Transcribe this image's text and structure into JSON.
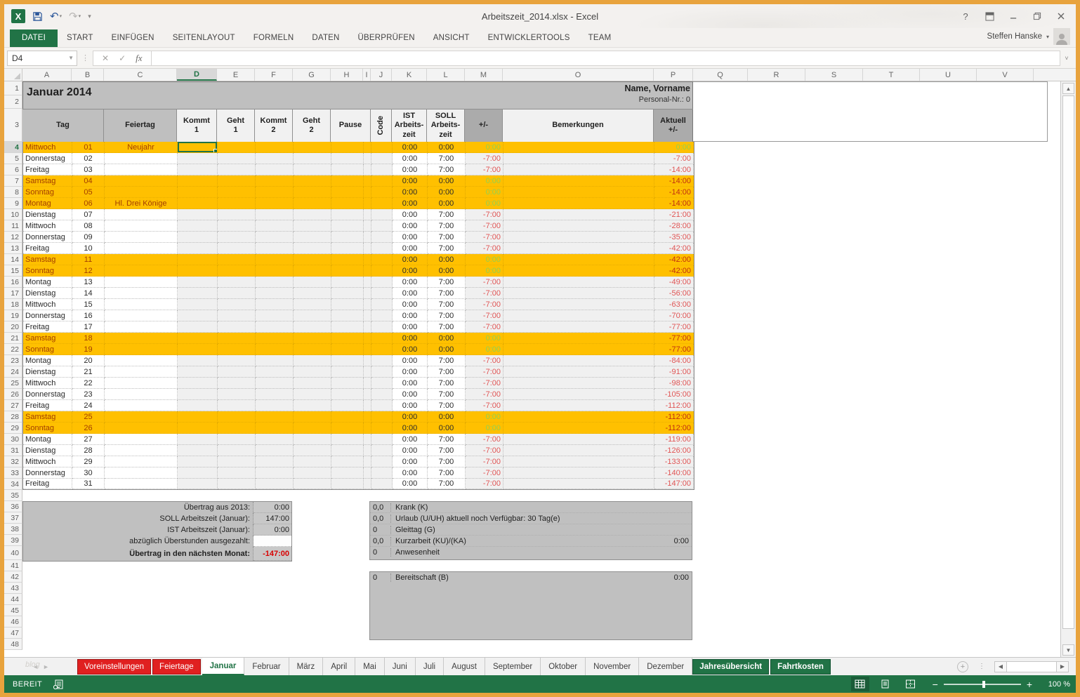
{
  "accent": {
    "green": "#217346",
    "orange_highlight": "#FFC000",
    "negative_red": "#E05555",
    "positive_green": "#92D050",
    "tab_red": "#E02020",
    "band_gray": "#BFBFBF"
  },
  "window": {
    "title": "Arbeitszeit_2014.xlsx - Excel",
    "controls": [
      "help",
      "ribbon-display-options",
      "minimize",
      "restore",
      "close"
    ],
    "help_glyph": "?"
  },
  "qat": {
    "undo_glyph": "↶",
    "redo_glyph": "↷",
    "excel_glyph": "X"
  },
  "ribbon": {
    "tabs": [
      "DATEI",
      "START",
      "EINFÜGEN",
      "SEITENLAYOUT",
      "FORMELN",
      "DATEN",
      "ÜBERPRÜFEN",
      "ANSICHT",
      "ENTWICKLERTOOLS",
      "TEAM"
    ],
    "active_tab": "DATEI",
    "user": "Steffen Hanske",
    "user_caret": "▾"
  },
  "formula_bar": {
    "name_box": "D4",
    "cancel_glyph": "✕",
    "enter_glyph": "✓",
    "fx_glyph": "fx",
    "value": ""
  },
  "grid": {
    "columns": [
      "A",
      "B",
      "C",
      "D",
      "E",
      "F",
      "G",
      "H",
      "I",
      "J",
      "K",
      "L",
      "M",
      "O",
      "P",
      "Q",
      "R",
      "S",
      "T",
      "U",
      "V"
    ],
    "selected_column": "D",
    "selected_row": 4,
    "first_row": 1,
    "last_row": 48
  },
  "sheet_head": {
    "month_title": "Januar 2014",
    "name_label": "Name, Vorname",
    "personal_label": "Personal-Nr.: 0"
  },
  "table_header": {
    "tag": "Tag",
    "feiertag": "Feiertag",
    "kommt1": "Kommt\n1",
    "geht1": "Geht\n1",
    "kommt2": "Kommt\n2",
    "geht2": "Geht\n2",
    "pause": "Pause",
    "code": "Code",
    "ist": "IST\nArbeits-\nzeit",
    "soll": "SOLL\nArbeits-\nzeit",
    "plusminus": "+/-",
    "bemerkungen": "Bemerkungen",
    "aktuell": "Aktuell\n+/-"
  },
  "days": [
    {
      "n": "01",
      "d": "Mittwoch",
      "f": "Neujahr",
      "w": true,
      "ist": "0:00",
      "soll": "0:00",
      "pm": "0:00",
      "pmc": "g",
      "akt": "0:00",
      "aktc": "g",
      "sel": true
    },
    {
      "n": "02",
      "d": "Donnerstag",
      "f": "",
      "w": false,
      "ist": "0:00",
      "soll": "7:00",
      "pm": "-7:00",
      "pmc": "r",
      "akt": "-7:00",
      "aktc": "r"
    },
    {
      "n": "03",
      "d": "Freitag",
      "f": "",
      "w": false,
      "ist": "0:00",
      "soll": "7:00",
      "pm": "-7:00",
      "pmc": "r",
      "akt": "-14:00",
      "aktc": "r"
    },
    {
      "n": "04",
      "d": "Samstag",
      "f": "",
      "w": true,
      "ist": "0:00",
      "soll": "0:00",
      "pm": "0:00",
      "pmc": "g",
      "akt": "-14:00",
      "aktc": "r"
    },
    {
      "n": "05",
      "d": "Sonntag",
      "f": "",
      "w": true,
      "ist": "0:00",
      "soll": "0:00",
      "pm": "0:00",
      "pmc": "g",
      "akt": "-14:00",
      "aktc": "r"
    },
    {
      "n": "06",
      "d": "Montag",
      "f": "Hl. Drei Könige",
      "w": true,
      "ist": "0:00",
      "soll": "0:00",
      "pm": "0:00",
      "pmc": "g",
      "akt": "-14:00",
      "aktc": "r"
    },
    {
      "n": "07",
      "d": "Dienstag",
      "f": "",
      "w": false,
      "ist": "0:00",
      "soll": "7:00",
      "pm": "-7:00",
      "pmc": "r",
      "akt": "-21:00",
      "aktc": "r"
    },
    {
      "n": "08",
      "d": "Mittwoch",
      "f": "",
      "w": false,
      "ist": "0:00",
      "soll": "7:00",
      "pm": "-7:00",
      "pmc": "r",
      "akt": "-28:00",
      "aktc": "r"
    },
    {
      "n": "09",
      "d": "Donnerstag",
      "f": "",
      "w": false,
      "ist": "0:00",
      "soll": "7:00",
      "pm": "-7:00",
      "pmc": "r",
      "akt": "-35:00",
      "aktc": "r"
    },
    {
      "n": "10",
      "d": "Freitag",
      "f": "",
      "w": false,
      "ist": "0:00",
      "soll": "7:00",
      "pm": "-7:00",
      "pmc": "r",
      "akt": "-42:00",
      "aktc": "r"
    },
    {
      "n": "11",
      "d": "Samstag",
      "f": "",
      "w": true,
      "ist": "0:00",
      "soll": "0:00",
      "pm": "0:00",
      "pmc": "g",
      "akt": "-42:00",
      "aktc": "r"
    },
    {
      "n": "12",
      "d": "Sonntag",
      "f": "",
      "w": true,
      "ist": "0:00",
      "soll": "0:00",
      "pm": "0:00",
      "pmc": "g",
      "akt": "-42:00",
      "aktc": "r"
    },
    {
      "n": "13",
      "d": "Montag",
      "f": "",
      "w": false,
      "ist": "0:00",
      "soll": "7:00",
      "pm": "-7:00",
      "pmc": "r",
      "akt": "-49:00",
      "aktc": "r"
    },
    {
      "n": "14",
      "d": "Dienstag",
      "f": "",
      "w": false,
      "ist": "0:00",
      "soll": "7:00",
      "pm": "-7:00",
      "pmc": "r",
      "akt": "-56:00",
      "aktc": "r"
    },
    {
      "n": "15",
      "d": "Mittwoch",
      "f": "",
      "w": false,
      "ist": "0:00",
      "soll": "7:00",
      "pm": "-7:00",
      "pmc": "r",
      "akt": "-63:00",
      "aktc": "r"
    },
    {
      "n": "16",
      "d": "Donnerstag",
      "f": "",
      "w": false,
      "ist": "0:00",
      "soll": "7:00",
      "pm": "-7:00",
      "pmc": "r",
      "akt": "-70:00",
      "aktc": "r"
    },
    {
      "n": "17",
      "d": "Freitag",
      "f": "",
      "w": false,
      "ist": "0:00",
      "soll": "7:00",
      "pm": "-7:00",
      "pmc": "r",
      "akt": "-77:00",
      "aktc": "r"
    },
    {
      "n": "18",
      "d": "Samstag",
      "f": "",
      "w": true,
      "ist": "0:00",
      "soll": "0:00",
      "pm": "0:00",
      "pmc": "g",
      "akt": "-77:00",
      "aktc": "r"
    },
    {
      "n": "19",
      "d": "Sonntag",
      "f": "",
      "w": true,
      "ist": "0:00",
      "soll": "0:00",
      "pm": "0:00",
      "pmc": "g",
      "akt": "-77:00",
      "aktc": "r"
    },
    {
      "n": "20",
      "d": "Montag",
      "f": "",
      "w": false,
      "ist": "0:00",
      "soll": "7:00",
      "pm": "-7:00",
      "pmc": "r",
      "akt": "-84:00",
      "aktc": "r"
    },
    {
      "n": "21",
      "d": "Dienstag",
      "f": "",
      "w": false,
      "ist": "0:00",
      "soll": "7:00",
      "pm": "-7:00",
      "pmc": "r",
      "akt": "-91:00",
      "aktc": "r"
    },
    {
      "n": "22",
      "d": "Mittwoch",
      "f": "",
      "w": false,
      "ist": "0:00",
      "soll": "7:00",
      "pm": "-7:00",
      "pmc": "r",
      "akt": "-98:00",
      "aktc": "r"
    },
    {
      "n": "23",
      "d": "Donnerstag",
      "f": "",
      "w": false,
      "ist": "0:00",
      "soll": "7:00",
      "pm": "-7:00",
      "pmc": "r",
      "akt": "-105:00",
      "aktc": "r"
    },
    {
      "n": "24",
      "d": "Freitag",
      "f": "",
      "w": false,
      "ist": "0:00",
      "soll": "7:00",
      "pm": "-7:00",
      "pmc": "r",
      "akt": "-112:00",
      "aktc": "r"
    },
    {
      "n": "25",
      "d": "Samstag",
      "f": "",
      "w": true,
      "ist": "0:00",
      "soll": "0:00",
      "pm": "0:00",
      "pmc": "g",
      "akt": "-112:00",
      "aktc": "r"
    },
    {
      "n": "26",
      "d": "Sonntag",
      "f": "",
      "w": true,
      "ist": "0:00",
      "soll": "0:00",
      "pm": "0:00",
      "pmc": "g",
      "akt": "-112:00",
      "aktc": "r"
    },
    {
      "n": "27",
      "d": "Montag",
      "f": "",
      "w": false,
      "ist": "0:00",
      "soll": "7:00",
      "pm": "-7:00",
      "pmc": "r",
      "akt": "-119:00",
      "aktc": "r"
    },
    {
      "n": "28",
      "d": "Dienstag",
      "f": "",
      "w": false,
      "ist": "0:00",
      "soll": "7:00",
      "pm": "-7:00",
      "pmc": "r",
      "akt": "-126:00",
      "aktc": "r"
    },
    {
      "n": "29",
      "d": "Mittwoch",
      "f": "",
      "w": false,
      "ist": "0:00",
      "soll": "7:00",
      "pm": "-7:00",
      "pmc": "r",
      "akt": "-133:00",
      "aktc": "r"
    },
    {
      "n": "30",
      "d": "Donnerstag",
      "f": "",
      "w": false,
      "ist": "0:00",
      "soll": "7:00",
      "pm": "-7:00",
      "pmc": "r",
      "akt": "-140:00",
      "aktc": "r"
    },
    {
      "n": "31",
      "d": "Freitag",
      "f": "",
      "w": false,
      "ist": "0:00",
      "soll": "7:00",
      "pm": "-7:00",
      "pmc": "r",
      "akt": "-147:00",
      "aktc": "r"
    }
  ],
  "summary_left": [
    {
      "label": "Übertrag aus 2013:",
      "value": "0:00",
      "bold": false,
      "red": false,
      "white": false,
      "tall": false
    },
    {
      "label": "SOLL Arbeitszeit (Januar):",
      "value": "147:00",
      "bold": false,
      "red": false,
      "white": false,
      "tall": false
    },
    {
      "label": "IST Arbeitszeit (Januar):",
      "value": "0:00",
      "bold": false,
      "red": false,
      "white": false,
      "tall": false
    },
    {
      "label": "abzüglich Überstunden ausgezahlt:",
      "value": "",
      "bold": false,
      "red": false,
      "white": true,
      "tall": false
    },
    {
      "label": "Übertrag in den nächsten Monat:",
      "value": "-147:00",
      "bold": true,
      "red": true,
      "white": false,
      "tall": true
    }
  ],
  "info_box1": [
    {
      "count": "0,0",
      "label": "Krank (K)",
      "value": ""
    },
    {
      "count": "0,0",
      "label": "Urlaub (U/UH) aktuell noch Verfügbar: 30 Tag(e)",
      "value": ""
    },
    {
      "count": "0",
      "label": "Gleittag (G)",
      "value": ""
    },
    {
      "count": "0,0",
      "label": "Kurzarbeit (KU)/(KA)",
      "value": "0:00"
    },
    {
      "count": "0",
      "label": "Anwesenheit",
      "value": ""
    }
  ],
  "info_box2": [
    {
      "count": "0",
      "label": "Bereitschaft (B)",
      "value": "0:00"
    }
  ],
  "sheet_tabs": [
    {
      "label": "Voreinstellungen",
      "style": "red"
    },
    {
      "label": "Feiertage",
      "style": "red"
    },
    {
      "label": "Januar",
      "style": "active"
    },
    {
      "label": "Februar",
      "style": "plain"
    },
    {
      "label": "März",
      "style": "plain"
    },
    {
      "label": "April",
      "style": "plain"
    },
    {
      "label": "Mai",
      "style": "plain"
    },
    {
      "label": "Juni",
      "style": "plain"
    },
    {
      "label": "Juli",
      "style": "plain"
    },
    {
      "label": "August",
      "style": "plain"
    },
    {
      "label": "September",
      "style": "plain"
    },
    {
      "label": "Oktober",
      "style": "plain"
    },
    {
      "label": "November",
      "style": "plain"
    },
    {
      "label": "Dezember",
      "style": "plain"
    },
    {
      "label": "Jahresübersicht",
      "style": "green"
    },
    {
      "label": "Fahrtkosten",
      "style": "green"
    }
  ],
  "tab_nav": {
    "left_glyph": "◄",
    "right_glyph": "►",
    "watermark": "blog",
    "new_sheet_glyph": "+",
    "dots_glyph": "⋮"
  },
  "status_bar": {
    "mode": "BEREIT",
    "zoom_minus": "−",
    "zoom_plus": "+",
    "zoom_level": "100 %"
  }
}
